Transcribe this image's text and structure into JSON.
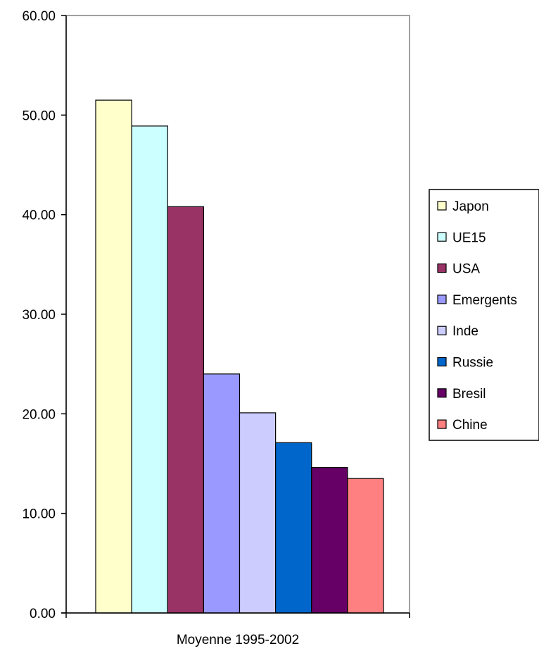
{
  "chart_data": {
    "type": "bar",
    "xlabel": "Moyenne 1995-2002",
    "ylabel": "",
    "title": "",
    "ylim": [
      0,
      60
    ],
    "yticks": [
      "0.00",
      "10.00",
      "20.00",
      "30.00",
      "40.00",
      "50.00",
      "60.00"
    ],
    "grid": false,
    "legend_position": "right",
    "categories": [
      "Moyenne 1995-2002"
    ],
    "series": [
      {
        "name": "Japon",
        "values": [
          51.5
        ],
        "color": "#ffffcc"
      },
      {
        "name": "UE15",
        "values": [
          48.9
        ],
        "color": "#ccffff"
      },
      {
        "name": "USA",
        "values": [
          40.8
        ],
        "color": "#993366"
      },
      {
        "name": "Emergents",
        "values": [
          24.0
        ],
        "color": "#9999ff"
      },
      {
        "name": "Inde",
        "values": [
          20.1
        ],
        "color": "#ccccff"
      },
      {
        "name": "Russie",
        "values": [
          17.1
        ],
        "color": "#0066cc"
      },
      {
        "name": "Bresil",
        "values": [
          14.6
        ],
        "color": "#660066"
      },
      {
        "name": "Chine",
        "values": [
          13.5
        ],
        "color": "#ff8080"
      }
    ]
  }
}
